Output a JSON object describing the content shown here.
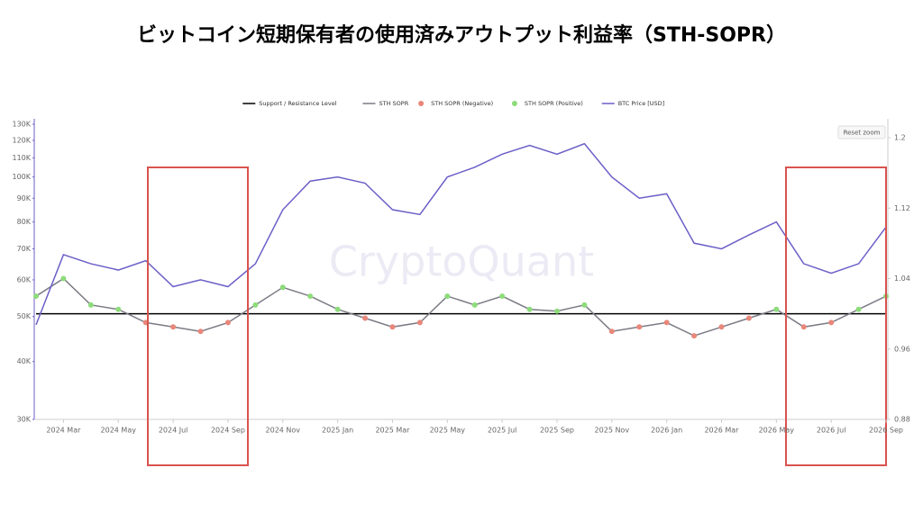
{
  "chart_data": {
    "type": "line",
    "title": "ビットコイン短期保有者の使用済みアウトプット利益率（STH-SOPR）",
    "watermark": "CryptoQuant",
    "reset_zoom_label": "Reset zoom",
    "x": [
      "2024-02",
      "2024-03",
      "2024-04",
      "2024-05",
      "2024-06",
      "2024-07",
      "2024-08",
      "2024-09",
      "2024-10",
      "2024-11",
      "2024-12",
      "2025-01",
      "2025-02",
      "2025-03",
      "2025-04",
      "2025-05",
      "2025-06",
      "2025-07",
      "2025-08",
      "2025-09",
      "2025-10",
      "2025-11",
      "2025-12",
      "2026-01",
      "2026-02",
      "2026-03",
      "2026-04",
      "2026-05",
      "2026-06",
      "2026-07",
      "2026-08",
      "2026-09"
    ],
    "xlim": [
      "2024-02",
      "2026-09"
    ],
    "xticks": [
      {
        "value": "2024-03",
        "label": "2024 Mar"
      },
      {
        "value": "2024-05",
        "label": "2024 May"
      },
      {
        "value": "2024-07",
        "label": "2024 Jul"
      },
      {
        "value": "2024-09",
        "label": "2024 Sep"
      },
      {
        "value": "2024-11",
        "label": "2024 Nov"
      },
      {
        "value": "2025-01",
        "label": "2025 Jan"
      },
      {
        "value": "2025-03",
        "label": "2025 Mar"
      },
      {
        "value": "2025-05",
        "label": "2025 May"
      },
      {
        "value": "2025-07",
        "label": "2025 Jul"
      },
      {
        "value": "2025-09",
        "label": "2025 Sep"
      },
      {
        "value": "2025-11",
        "label": "2025 Nov"
      },
      {
        "value": "2026-01",
        "label": "2026 Jan"
      },
      {
        "value": "2026-03",
        "label": "2026 Mar"
      },
      {
        "value": "2026-05",
        "label": "2026 May"
      },
      {
        "value": "2026-07",
        "label": "2026 Jul"
      },
      {
        "value": "2026-09",
        "label": "2026 Sep"
      }
    ],
    "log_y": true,
    "ylim": [
      30000,
      130000
    ],
    "yticks": [
      {
        "value": 30000,
        "label": "30K"
      },
      {
        "value": 40000,
        "label": "40K"
      },
      {
        "value": 50000,
        "label": "50K"
      },
      {
        "value": 60000,
        "label": "60K"
      },
      {
        "value": 70000,
        "label": "70K"
      },
      {
        "value": 80000,
        "label": "80K"
      },
      {
        "value": 90000,
        "label": "90K"
      },
      {
        "value": 100000,
        "label": "100K"
      },
      {
        "value": 110000,
        "label": "110K"
      },
      {
        "value": 120000,
        "label": "120K"
      },
      {
        "value": 130000,
        "label": "130K"
      }
    ],
    "y2lim": [
      0.88,
      1.2
    ],
    "y2ticks": [
      0.88,
      0.96,
      1.04,
      1.12,
      1.2
    ],
    "series": [
      {
        "name": "Support / Resistance Level",
        "color": "#000000",
        "axis": "y2",
        "style": "hline",
        "value": 1
      },
      {
        "name": "STH SOPR",
        "color": "#7b7b86",
        "axis": "y2",
        "style": "line",
        "values": [
          1.02,
          1.04,
          1.01,
          1.005,
          0.99,
          0.985,
          0.98,
          0.99,
          1.01,
          1.03,
          1.02,
          1.005,
          0.995,
          0.985,
          0.99,
          1.02,
          1.01,
          1.02,
          1.005,
          1.003,
          1.01,
          0.98,
          0.985,
          0.99,
          0.975,
          0.985,
          0.995,
          1.005,
          0.985,
          0.99,
          1.005,
          1.02
        ]
      },
      {
        "name": "STH SOPR (Negative)",
        "color": "#e8877a",
        "axis": "y2",
        "style": "dots",
        "values": [
          null,
          null,
          null,
          null,
          0.99,
          0.985,
          0.98,
          0.99,
          null,
          null,
          null,
          null,
          0.995,
          0.985,
          0.99,
          null,
          null,
          null,
          null,
          null,
          null,
          0.98,
          0.985,
          0.99,
          0.975,
          0.985,
          0.995,
          null,
          0.985,
          0.99,
          null,
          null
        ]
      },
      {
        "name": "STH SOPR (Positive)",
        "color": "#8ddc7a",
        "axis": "y2",
        "style": "dots",
        "values": [
          1.02,
          1.04,
          1.01,
          1.005,
          null,
          null,
          null,
          null,
          1.01,
          1.03,
          1.02,
          1.005,
          null,
          null,
          null,
          1.02,
          1.01,
          1.02,
          1.005,
          1.003,
          1.01,
          null,
          null,
          null,
          null,
          null,
          null,
          1.005,
          null,
          null,
          1.005,
          1.02
        ]
      },
      {
        "name": "BTC Price [USD]",
        "color": "#6b5fc7",
        "axis": "y",
        "style": "line",
        "values": [
          48000,
          68000,
          65000,
          63000,
          66000,
          58000,
          60000,
          58000,
          65000,
          85000,
          98000,
          100000,
          97000,
          85000,
          83000,
          100000,
          105000,
          112000,
          117000,
          112000,
          118000,
          100000,
          90000,
          92000,
          72000,
          70000,
          75000,
          80000,
          65000,
          62000,
          65000,
          78000
        ]
      }
    ]
  }
}
